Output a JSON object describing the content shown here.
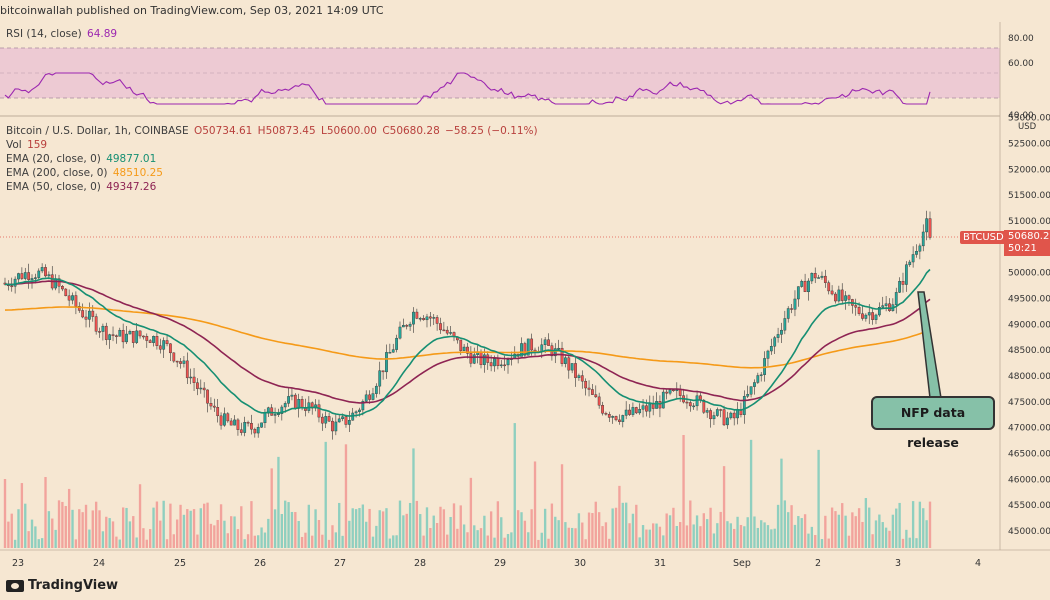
{
  "header": {
    "publisher": "bitcoinwallah published on TradingView.com, Sep 03, 2021 14:09 UTC"
  },
  "rsi_panel": {
    "label": "RSI (14, close)",
    "value": "64.89",
    "value_color": "#9c27b0",
    "axis_ticks": [
      "80.00",
      "60.00",
      "40.00"
    ]
  },
  "main_panel": {
    "symbol": "Bitcoin / U.S. Dollar, 1h, COINBASE",
    "ohlc": {
      "o": "O50734.61",
      "h": "H50873.45",
      "l": "L50600.00",
      "c": "C50680.28",
      "chg": "−58.25 (−0.11%)"
    },
    "vol_label": "Vol",
    "vol_value": "159",
    "ema20": {
      "label": "EMA (20, close, 0)",
      "value": "49877.01",
      "color": "#168f73"
    },
    "ema200": {
      "label": "EMA (200, close, 0)",
      "value": "48510.25",
      "color": "#f59a18"
    },
    "ema50": {
      "label": "EMA (50, close, 0)",
      "value": "49347.26",
      "color": "#8e2453"
    },
    "price_axis": [
      "53000.00",
      "52500.00",
      "52000.00",
      "51500.00",
      "51000.00",
      "50500.00",
      "50000.00",
      "49500.00",
      "49000.00",
      "48500.00",
      "48000.00",
      "47500.00",
      "47000.00",
      "46500.00",
      "46000.00",
      "45500.00",
      "45000.00"
    ],
    "currency": "USD",
    "ticker_tag": "BTCUSD",
    "last_price": "50680.28",
    "countdown": "50:21",
    "x_axis": [
      "23",
      "24",
      "25",
      "26",
      "27",
      "28",
      "29",
      "30",
      "31",
      "Sep",
      "2",
      "3",
      "4"
    ],
    "annotation": "NFP data release"
  },
  "footer": {
    "brand": "TradingView"
  },
  "colors": {
    "up": "#26a69a",
    "down": "#ef5350",
    "background": "#f6e7d2",
    "rsi_band": "#e9c8d6"
  },
  "chart_data": {
    "type": "candlestick",
    "symbol": "BTCUSD",
    "interval": "1h",
    "x_labels": [
      "23",
      "24",
      "25",
      "26",
      "27",
      "28",
      "29",
      "30",
      "31",
      "Sep",
      "2",
      "3",
      "4"
    ],
    "price_range": [
      44700,
      53000
    ],
    "approx_close_path": [
      {
        "day": "23",
        "close": 49800
      },
      {
        "day": "24",
        "close": 49400
      },
      {
        "day": "25",
        "close": 48100
      },
      {
        "day": "26",
        "close": 47100
      },
      {
        "day": "27",
        "close": 47200
      },
      {
        "day": "28",
        "close": 48900
      },
      {
        "day": "29",
        "close": 48600
      },
      {
        "day": "30",
        "close": 48000
      },
      {
        "day": "31",
        "close": 47200
      },
      {
        "day": "Sep",
        "close": 47500
      },
      {
        "day": "2",
        "close": 49700
      },
      {
        "day": "3",
        "close": 49500
      },
      {
        "day": "3 (last)",
        "close": 50680.28
      }
    ],
    "series": [
      {
        "name": "EMA (20, close, 0)",
        "last": 49877.01
      },
      {
        "name": "EMA (200, close, 0)",
        "last": 48510.25
      },
      {
        "name": "EMA (50, close, 0)",
        "last": 49347.26
      },
      {
        "name": "RSI (14, close)",
        "last": 64.89
      }
    ],
    "grid": false
  }
}
